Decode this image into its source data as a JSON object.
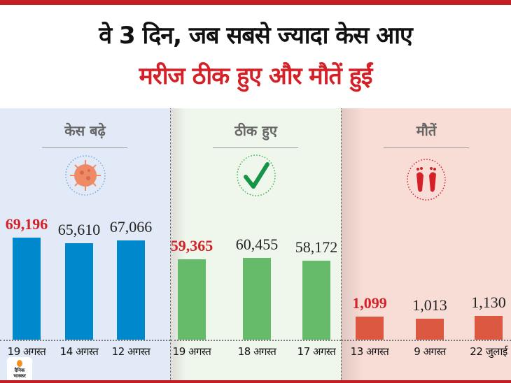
{
  "header": {
    "title": "वे 3 दिन, जब सबसे ज्यादा केस आए",
    "subtitle": "मरीज ठीक हुए और मौतें हुईं"
  },
  "brand": {
    "logo_text": "दैनिक भास्कर",
    "accent": "#c41e24"
  },
  "chart_data": [
    {
      "type": "bar",
      "title": "केस बढ़े",
      "icon": "virus-icon",
      "color": "#0088cc",
      "highlight_color": "#d42027",
      "categories": [
        "19 अगस्त",
        "14 अगस्त",
        "12 अगस्त"
      ],
      "values": [
        69196,
        65610,
        67066
      ],
      "labels": [
        "69,196",
        "65,610",
        "67,066"
      ],
      "highlight_index": 0
    },
    {
      "type": "bar",
      "title": "ठीक हुए",
      "icon": "checkmark-icon",
      "color": "#66bb6a",
      "highlight_color": "#d42027",
      "categories": [
        "19 अगस्त",
        "18 अगस्त",
        "17 अगस्त"
      ],
      "values": [
        59365,
        60455,
        58172
      ],
      "labels": [
        "59,365",
        "60,455",
        "58,172"
      ],
      "highlight_index": 0
    },
    {
      "type": "bar",
      "title": "मौतें",
      "icon": "footprints-icon",
      "color": "#dd5840",
      "highlight_color": "#d42027",
      "categories": [
        "13 अगस्त",
        "9 अगस्त",
        "22 जुलाई"
      ],
      "values": [
        1099,
        1013,
        1130
      ],
      "labels": [
        "1,099",
        "1,013",
        "1,130"
      ],
      "highlight_index": 0
    }
  ]
}
